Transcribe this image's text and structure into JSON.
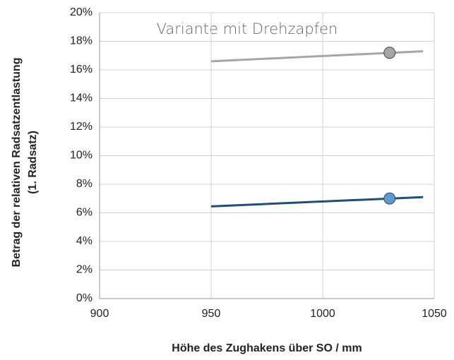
{
  "chart_data": {
    "type": "line",
    "annotation": "Variante mit Drehzapfen",
    "y_label": [
      "Betrag der relativen Radsatzentlastung",
      "(1. Radsatz)"
    ],
    "x_label": "Höhe des Zughakens über SO / mm",
    "xlim": [
      900,
      1050
    ],
    "xticks": [
      900,
      950,
      1000,
      1050
    ],
    "ylim": [
      0,
      20
    ],
    "yticks": [
      {
        "value": 0,
        "label": "0%"
      },
      {
        "value": 2,
        "label": "2%"
      },
      {
        "value": 4,
        "label": "4%"
      },
      {
        "value": 6,
        "label": "6%"
      },
      {
        "value": 8,
        "label": "8%"
      },
      {
        "value": 10,
        "label": "10%"
      },
      {
        "value": 12,
        "label": "12%"
      },
      {
        "value": 14,
        "label": "14%"
      },
      {
        "value": 16,
        "label": "16%"
      },
      {
        "value": 18,
        "label": "18%"
      },
      {
        "value": 20,
        "label": "20%"
      }
    ],
    "grid": true,
    "series": [
      {
        "color": "#a6a6a6",
        "marker_color": "#a6a6a6",
        "x": [
          950,
          1045
        ],
        "values": [
          16.6,
          17.3
        ],
        "marker": {
          "x": 1030,
          "value": 17.2
        }
      },
      {
        "color": "#1f4e79",
        "marker_color": "#5b9bd5",
        "x": [
          950,
          1045
        ],
        "values": [
          6.45,
          7.1
        ],
        "marker": {
          "x": 1030,
          "value": 7.0
        }
      }
    ]
  }
}
